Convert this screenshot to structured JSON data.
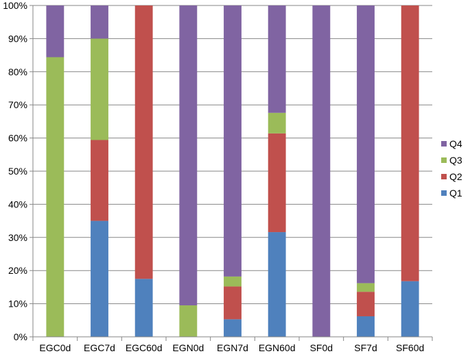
{
  "chart_data": {
    "type": "bar",
    "stacked": "percent",
    "title": "",
    "xlabel": "",
    "ylabel": "",
    "ylim": [
      0,
      100
    ],
    "ytick_format": "percent",
    "y_ticks": [
      "0%",
      "10%",
      "20%",
      "30%",
      "40%",
      "50%",
      "60%",
      "70%",
      "80%",
      "90%",
      "100%"
    ],
    "grid": true,
    "legend_position": "right",
    "categories": [
      "EGC0d",
      "EGC7d",
      "EGC60d",
      "EGN0d",
      "EGN7d",
      "EGN60d",
      "SF0d",
      "SF7d",
      "SF60d"
    ],
    "series": [
      {
        "name": "Q1",
        "color": "#4F81BD",
        "values": [
          0,
          35,
          17.5,
          0,
          5.3,
          31.6,
          0,
          6.2,
          16.8
        ]
      },
      {
        "name": "Q2",
        "color": "#C0504D",
        "values": [
          0,
          24.4,
          82.5,
          0,
          9.9,
          29.8,
          0,
          7.4,
          83.2
        ]
      },
      {
        "name": "Q3",
        "color": "#9BBB59",
        "values": [
          84.4,
          30.6,
          0,
          9.5,
          3.0,
          6.2,
          0,
          2.6,
          0
        ]
      },
      {
        "name": "Q4",
        "color": "#8064A2",
        "values": [
          15.6,
          10.0,
          0,
          90.5,
          81.8,
          32.4,
          100,
          83.8,
          0
        ]
      }
    ]
  }
}
